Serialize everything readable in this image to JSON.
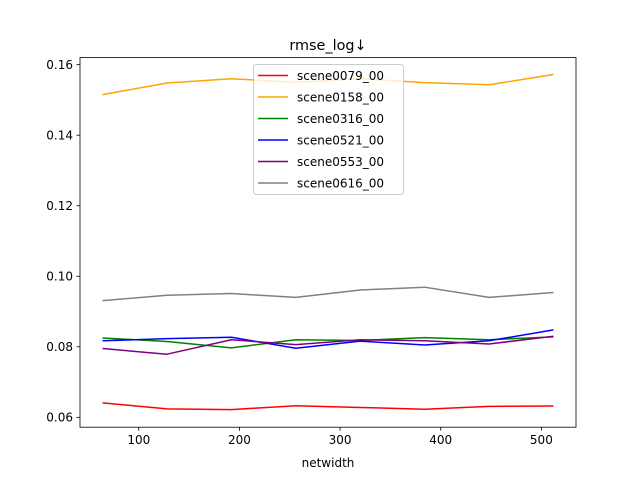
{
  "chart_data": {
    "type": "line",
    "title": "rmse_log↓",
    "xlabel": "netwidth",
    "ylabel": "",
    "xlim": [
      41.6,
      534.4
    ],
    "ylim": [
      0.0572,
      0.162
    ],
    "xticks": [
      100,
      200,
      300,
      400,
      500
    ],
    "yticks": [
      0.06,
      0.08,
      0.1,
      0.12,
      0.14,
      0.16
    ],
    "ytick_labels": [
      "0.06",
      "0.08",
      "0.10",
      "0.12",
      "0.14",
      "0.16"
    ],
    "grid": false,
    "legend_position": "upper center",
    "x": [
      64,
      128,
      192,
      256,
      320,
      384,
      448,
      512
    ],
    "series": [
      {
        "name": "scene0079_00",
        "color": "#ff0000",
        "values": [
          0.0641,
          0.0624,
          0.0622,
          0.0633,
          0.0628,
          0.0623,
          0.0631,
          0.0632
        ]
      },
      {
        "name": "scene0158_00",
        "color": "#ffa500",
        "values": [
          0.1515,
          0.1548,
          0.156,
          0.155,
          0.156,
          0.1549,
          0.1543,
          0.1572
        ]
      },
      {
        "name": "scene0316_00",
        "color": "#008000",
        "values": [
          0.0825,
          0.0815,
          0.0797,
          0.082,
          0.0818,
          0.0826,
          0.082,
          0.0828
        ]
      },
      {
        "name": "scene0521_00",
        "color": "#0000ff",
        "values": [
          0.0817,
          0.0823,
          0.0827,
          0.0796,
          0.0816,
          0.0805,
          0.0817,
          0.0848
        ]
      },
      {
        "name": "scene0553_00",
        "color": "#800080",
        "values": [
          0.0795,
          0.0779,
          0.082,
          0.0806,
          0.082,
          0.0817,
          0.0808,
          0.083
        ]
      },
      {
        "name": "scene0616_00",
        "color": "#808080",
        "values": [
          0.0931,
          0.0946,
          0.0951,
          0.094,
          0.0961,
          0.0969,
          0.094,
          0.0954
        ]
      }
    ]
  }
}
